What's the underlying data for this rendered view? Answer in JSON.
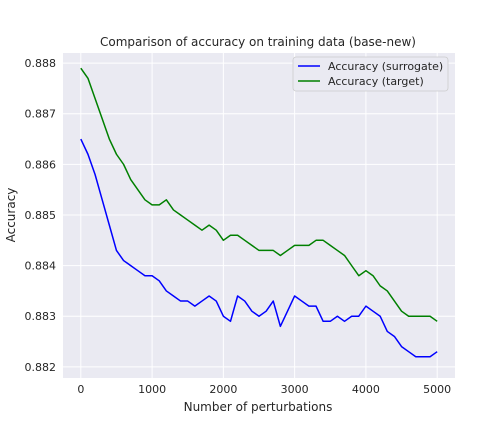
{
  "chart_data": {
    "type": "line",
    "title": "Comparison of accuracy on training data (base-new)",
    "xlabel": "Number of perturbations",
    "ylabel": "Accuracy",
    "xlim": [
      -250,
      5250
    ],
    "ylim": [
      0.88178,
      0.8882
    ],
    "xticks": [
      "0",
      "1000",
      "2000",
      "3000",
      "4000",
      "5000"
    ],
    "yticks": [
      "0.882",
      "0.883",
      "0.884",
      "0.885",
      "0.886",
      "0.887",
      "0.888"
    ],
    "grid": true,
    "legend_position": "top-right",
    "colors": {
      "background": "#eaeaf2",
      "grid": "#ffffff"
    },
    "series": [
      {
        "name": "Accuracy (surrogate)",
        "color": "#0000ff",
        "x": [
          0,
          100,
          200,
          300,
          400,
          500,
          600,
          700,
          800,
          900,
          1000,
          1100,
          1200,
          1300,
          1400,
          1500,
          1600,
          1700,
          1800,
          1900,
          2000,
          2100,
          2200,
          2300,
          2400,
          2500,
          2600,
          2700,
          2800,
          2900,
          3000,
          3100,
          3200,
          3300,
          3400,
          3500,
          3600,
          3700,
          3800,
          3900,
          4000,
          4100,
          4200,
          4300,
          4400,
          4500,
          4600,
          4700,
          4800,
          4900,
          5000
        ],
        "y": [
          0.8865,
          0.8862,
          0.8858,
          0.8853,
          0.8848,
          0.8843,
          0.8841,
          0.884,
          0.8839,
          0.8838,
          0.8838,
          0.8837,
          0.8835,
          0.8834,
          0.8833,
          0.8833,
          0.8832,
          0.8833,
          0.8834,
          0.8833,
          0.883,
          0.8829,
          0.8834,
          0.8833,
          0.8831,
          0.883,
          0.8831,
          0.8833,
          0.8828,
          0.8831,
          0.8834,
          0.8833,
          0.8832,
          0.8832,
          0.8829,
          0.8829,
          0.883,
          0.8829,
          0.883,
          0.883,
          0.8832,
          0.8831,
          0.883,
          0.8827,
          0.8826,
          0.8824,
          0.8823,
          0.8822,
          0.8822,
          0.8822,
          0.8823
        ]
      },
      {
        "name": "Accuracy (target)",
        "color": "#008000",
        "x": [
          0,
          100,
          200,
          300,
          400,
          500,
          600,
          700,
          800,
          900,
          1000,
          1100,
          1200,
          1300,
          1400,
          1500,
          1600,
          1700,
          1800,
          1900,
          2000,
          2100,
          2200,
          2300,
          2400,
          2500,
          2600,
          2700,
          2800,
          2900,
          3000,
          3100,
          3200,
          3300,
          3400,
          3500,
          3600,
          3700,
          3800,
          3900,
          4000,
          4100,
          4200,
          4300,
          4400,
          4500,
          4600,
          4700,
          4800,
          4900,
          5000
        ],
        "y": [
          0.8879,
          0.8877,
          0.8873,
          0.8869,
          0.8865,
          0.8862,
          0.886,
          0.8857,
          0.8855,
          0.8853,
          0.8852,
          0.8852,
          0.8853,
          0.8851,
          0.885,
          0.8849,
          0.8848,
          0.8847,
          0.8848,
          0.8847,
          0.8845,
          0.8846,
          0.8846,
          0.8845,
          0.8844,
          0.8843,
          0.8843,
          0.8843,
          0.8842,
          0.8843,
          0.8844,
          0.8844,
          0.8844,
          0.8845,
          0.8845,
          0.8844,
          0.8843,
          0.8842,
          0.884,
          0.8838,
          0.8839,
          0.8838,
          0.8836,
          0.8835,
          0.8833,
          0.8831,
          0.883,
          0.883,
          0.883,
          0.883,
          0.8829
        ]
      }
    ]
  }
}
